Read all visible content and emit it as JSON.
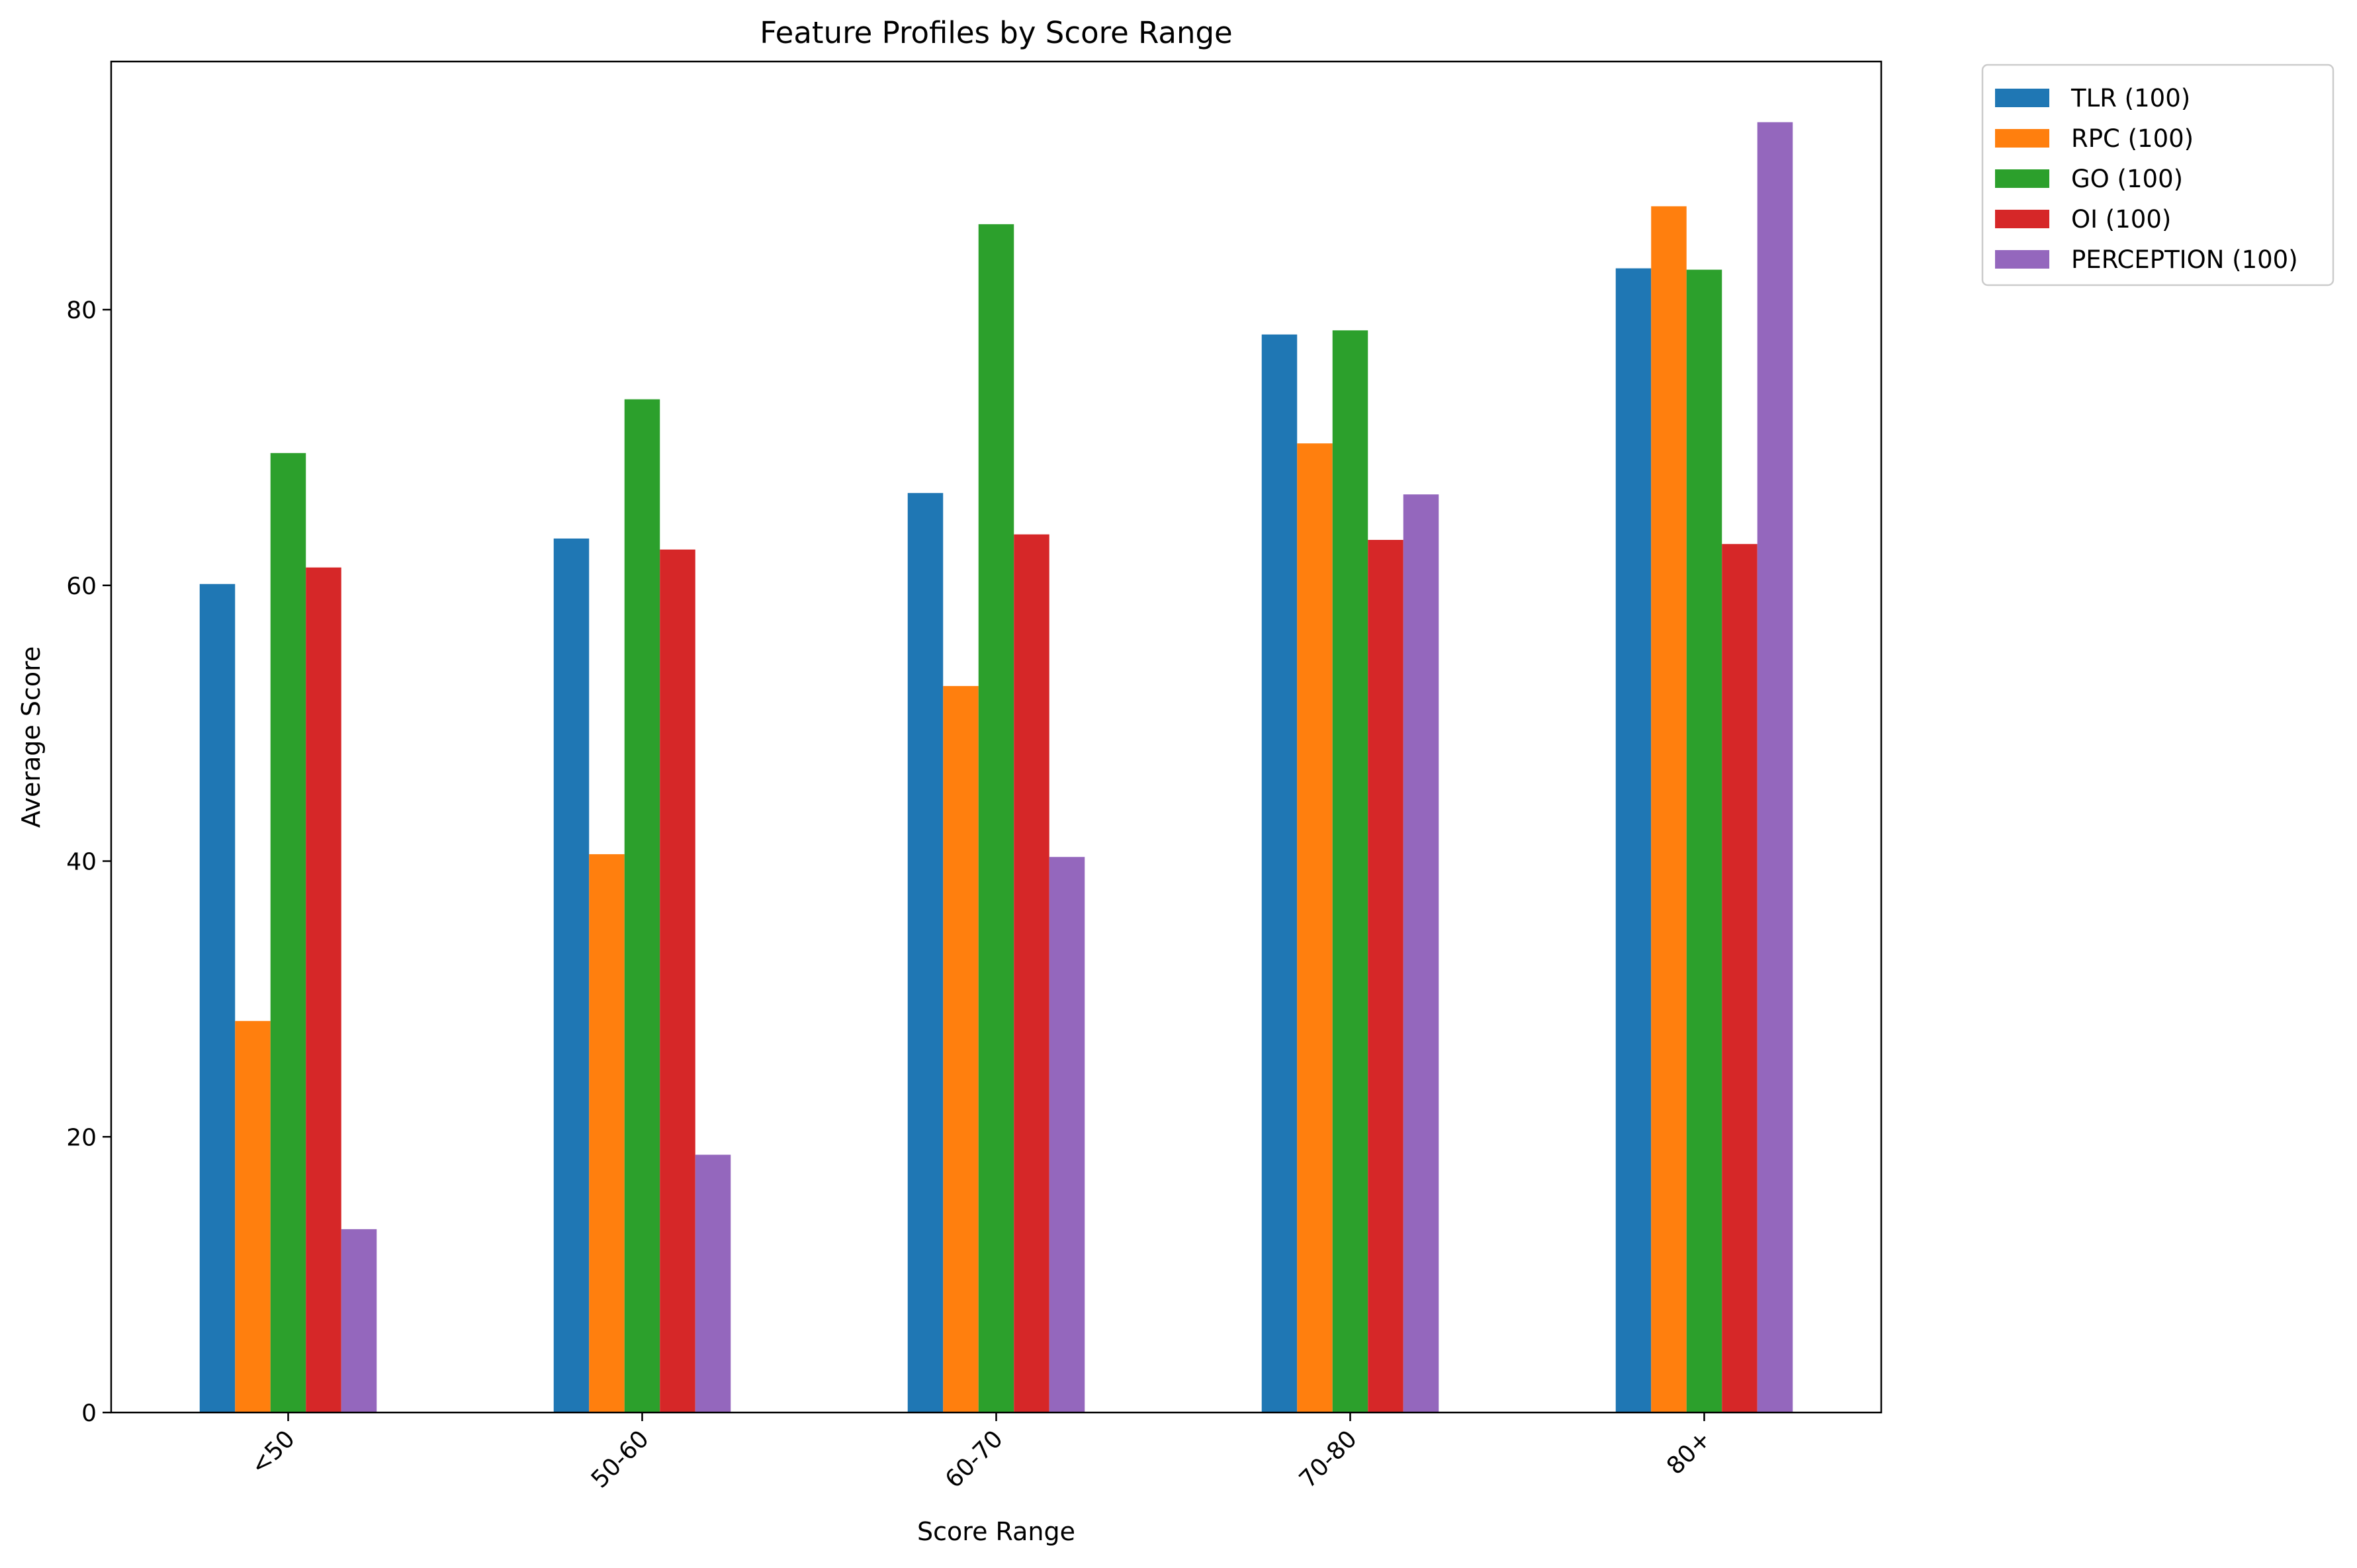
{
  "chart_data": {
    "type": "bar",
    "title": "Feature Profiles by Score Range",
    "xlabel": "Score Range",
    "ylabel": "Average Score",
    "categories": [
      "<50",
      "50-60",
      "60-70",
      "70-80",
      "80+"
    ],
    "yticks": [
      0,
      20,
      40,
      60,
      80
    ],
    "ylim": [
      0,
      98
    ],
    "grid": false,
    "legend_position": "outside-top-right",
    "series": [
      {
        "name": "TLR (100)",
        "color": "#1f77b4",
        "values": [
          60.1,
          63.4,
          66.7,
          78.2,
          83.0
        ]
      },
      {
        "name": "RPC (100)",
        "color": "#ff7f0e",
        "values": [
          28.4,
          40.5,
          52.7,
          70.3,
          87.5
        ]
      },
      {
        "name": "GO (100)",
        "color": "#2ca02c",
        "values": [
          69.6,
          73.5,
          86.2,
          78.5,
          82.9
        ]
      },
      {
        "name": "OI (100)",
        "color": "#d62728",
        "values": [
          61.3,
          62.6,
          63.7,
          63.3,
          63.0
        ]
      },
      {
        "name": "PERCEPTION (100)",
        "color": "#9467bd",
        "values": [
          13.3,
          18.7,
          40.3,
          66.6,
          93.6
        ]
      }
    ]
  }
}
